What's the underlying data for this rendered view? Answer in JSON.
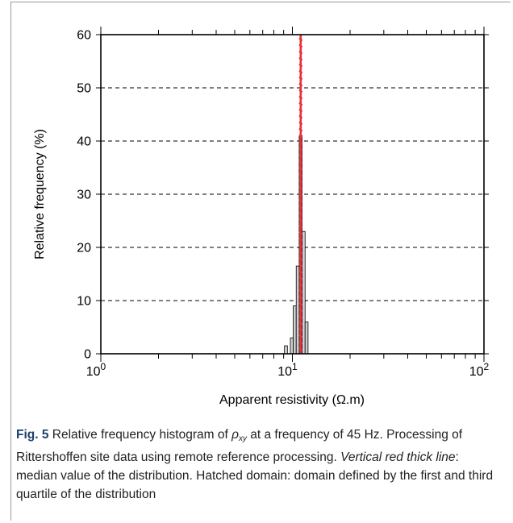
{
  "chart_data": {
    "type": "bar",
    "title": "",
    "xlabel": "Apparent resistivity (Ω.m)",
    "ylabel": "Relative frequency (%)",
    "x_scale": "log",
    "xlim": [
      1,
      100
    ],
    "ylim": [
      0,
      60
    ],
    "x_tick_labels": [
      {
        "value": 1,
        "base": "10",
        "exp": "0"
      },
      {
        "value": 10,
        "base": "10",
        "exp": "1"
      },
      {
        "value": 100,
        "base": "10",
        "exp": "2"
      }
    ],
    "y_ticks": [
      0,
      10,
      20,
      30,
      40,
      50,
      60
    ],
    "grid": "horizontal dashed",
    "bins": [
      {
        "x0": 9.09,
        "x1": 9.42,
        "value": 1.5
      },
      {
        "x0": 9.76,
        "x1": 10.1,
        "value": 3
      },
      {
        "x0": 10.1,
        "x1": 10.47,
        "value": 9
      },
      {
        "x0": 10.47,
        "x1": 10.85,
        "value": 16.5
      },
      {
        "x0": 10.85,
        "x1": 11.24,
        "value": 41
      },
      {
        "x0": 11.24,
        "x1": 11.65,
        "value": 23
      },
      {
        "x0": 11.65,
        "x1": 12.07,
        "value": 6
      }
    ],
    "median": 11.05,
    "quartiles": [
      10.95,
      11.15
    ],
    "colors": {
      "bar": "#cfcfcf",
      "median": "#e8303a",
      "hatch": "#e8303a",
      "grid": "#000000"
    }
  },
  "caption": {
    "label": "Fig. 5",
    "text_1": "Relative frequency histogram of ",
    "rho": "ρ",
    "rho_sub": "xy",
    "text_2": " at a frequency of 45 Hz. Processing of Rittershoffen site data using remote reference processing. ",
    "italic": "Vertical red thick line",
    "text_3": ": median value of the distribution. Hatched domain: domain defined by the first and third quartile of the distribution"
  }
}
